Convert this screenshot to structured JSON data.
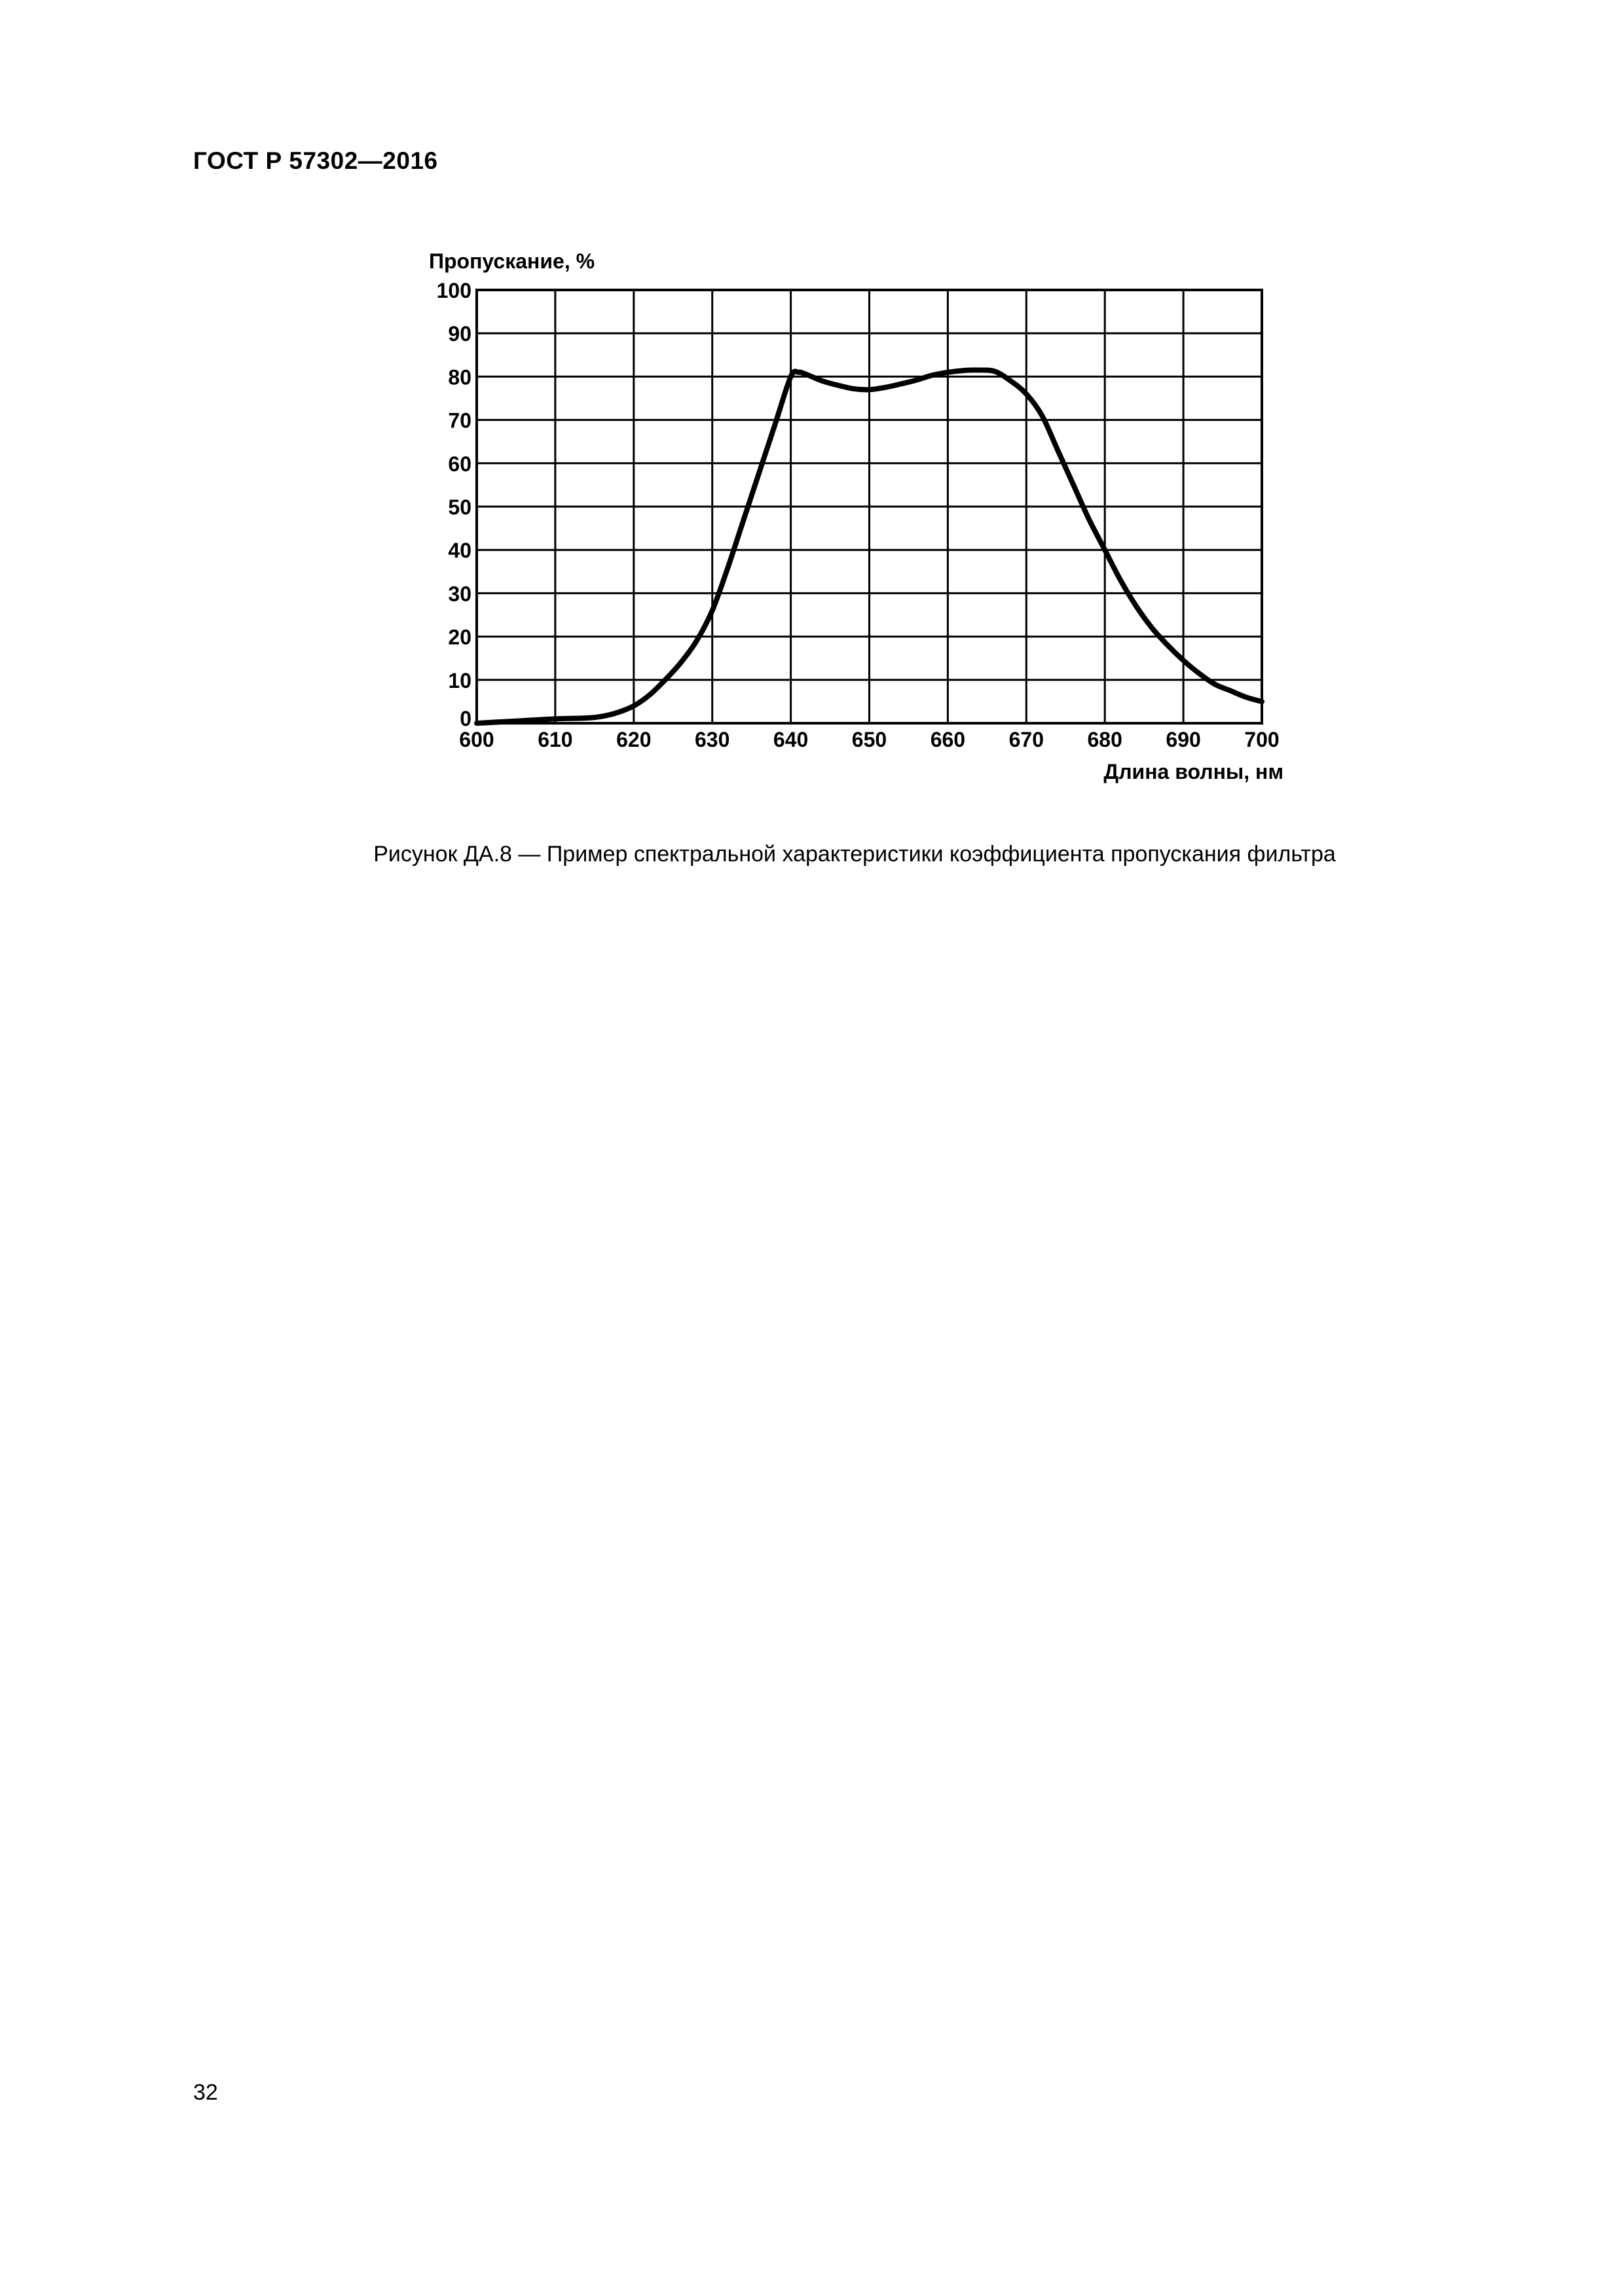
{
  "header": {
    "document_code": "ГОСТ Р 57302—2016"
  },
  "figure": {
    "caption": "Рисунок ДА.8 — Пример спектральной характеристики коэффициента пропускания фильтра"
  },
  "page": {
    "number": "32"
  },
  "chart_data": {
    "type": "line",
    "title": "",
    "ylabel": "Пропускание, %",
    "xlabel": "Длина волны, нм",
    "xlim": [
      600,
      700
    ],
    "ylim": [
      0,
      100
    ],
    "x_ticks": [
      600,
      610,
      620,
      630,
      640,
      650,
      660,
      670,
      680,
      690,
      700
    ],
    "y_ticks": [
      0,
      10,
      20,
      30,
      40,
      50,
      60,
      70,
      80,
      90,
      100
    ],
    "x_tick_labels": [
      "600",
      "610",
      "620",
      "630",
      "640",
      "650",
      "660",
      "670",
      "680",
      "690",
      "700"
    ],
    "y_tick_labels": [
      "0",
      "10",
      "20",
      "30",
      "40",
      "50",
      "60",
      "70",
      "80",
      "90",
      "100"
    ],
    "grid": true,
    "legend": "none",
    "series": [
      {
        "color": "#000000",
        "x": [
          600,
          605,
          610,
          614,
          616,
          618,
          620,
          622,
          624,
          626,
          628,
          630,
          632,
          634,
          636,
          638,
          640,
          641,
          642,
          644,
          646,
          648,
          650,
          652,
          654,
          656,
          658,
          660,
          662,
          664,
          666,
          668,
          670,
          672,
          674,
          676,
          678,
          680,
          682,
          684,
          686,
          688,
          690,
          692,
          694,
          696,
          698,
          700
        ],
        "y": [
          0,
          0.5,
          1,
          1.2,
          1.6,
          2.5,
          4,
          6.5,
          10,
          14,
          19,
          26,
          36,
          47,
          58,
          69,
          80,
          81,
          80.5,
          79,
          78,
          77.2,
          77,
          77.5,
          78.3,
          79.2,
          80.3,
          81,
          81.4,
          81.5,
          81.2,
          79,
          76,
          71,
          63,
          55,
          47,
          40,
          33,
          27,
          22,
          18,
          14.5,
          11.5,
          9,
          7.5,
          6,
          5
        ]
      }
    ]
  }
}
